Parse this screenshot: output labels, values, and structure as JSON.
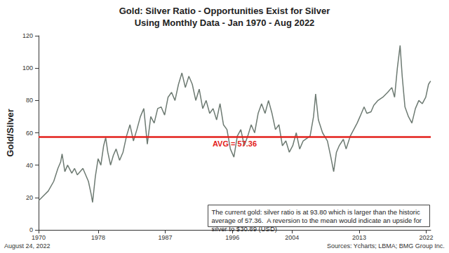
{
  "chart_data": {
    "type": "line",
    "title": "Gold: Silver Ratio - Opportunities Exist for Silver",
    "subtitle": "Using Monthly Data - Jan 1970 - Aug 2022",
    "y_label": "Gold/Silver",
    "color": "#6d7a72",
    "x": [
      1970.0,
      1970.65,
      1971.3,
      1972.04,
      1972.6,
      1972.97,
      1973.16,
      1973.53,
      1973.9,
      1974.46,
      1974.83,
      1975.2,
      1975.57,
      1975.95,
      1976.32,
      1976.69,
      1977.06,
      1977.25,
      1977.62,
      1977.99,
      1978.36,
      1978.73,
      1979.01,
      1979.29,
      1979.66,
      1980.03,
      1980.4,
      1980.87,
      1981.33,
      1981.8,
      1982.26,
      1982.73,
      1983.19,
      1983.66,
      1984.12,
      1984.59,
      1985.05,
      1985.51,
      1985.98,
      1986.44,
      1986.91,
      1987.37,
      1987.84,
      1988.3,
      1988.77,
      1989.23,
      1989.69,
      1990.16,
      1990.62,
      1991.09,
      1991.55,
      1992.02,
      1992.48,
      1992.95,
      1993.41,
      1993.88,
      1994.34,
      1994.8,
      1995.27,
      1995.73,
      1996.2,
      1996.66,
      1997.13,
      1997.59,
      1998.06,
      1998.52,
      1998.98,
      1999.45,
      1999.91,
      2000.38,
      2000.84,
      2001.31,
      2001.77,
      2002.24,
      2002.7,
      2003.17,
      2003.63,
      2004.09,
      2004.56,
      2005.02,
      2005.49,
      2006.42,
      2006.88,
      2007.16,
      2007.53,
      2008.09,
      2008.74,
      2009.2,
      2009.58,
      2009.95,
      2010.32,
      2010.88,
      2011.25,
      2011.81,
      2012.27,
      2012.73,
      2013.11,
      2013.66,
      2014.03,
      2014.59,
      2014.96,
      2015.52,
      2016.17,
      2016.82,
      2017.38,
      2017.75,
      2018.12,
      2018.49,
      2018.77,
      2019.14,
      2019.61,
      2020.07,
      2020.54,
      2021.0,
      2021.47,
      2021.93,
      2022.3,
      2022.58
    ],
    "values": [
      18,
      21,
      24,
      30,
      38,
      42,
      47,
      36,
      40,
      35,
      38,
      34,
      36,
      38,
      34,
      30,
      22,
      17,
      33,
      44,
      40,
      52,
      57,
      48,
      40,
      46,
      50,
      43,
      48,
      58,
      65,
      55,
      62,
      70,
      75,
      53,
      70,
      66,
      75,
      76,
      71,
      82,
      85,
      80,
      90,
      97,
      88,
      95,
      90,
      80,
      87,
      75,
      80,
      72,
      75,
      68,
      78,
      65,
      62,
      50,
      45,
      58,
      62,
      52,
      58,
      65,
      60,
      72,
      78,
      72,
      80,
      72,
      62,
      65,
      52,
      55,
      48,
      52,
      60,
      50,
      55,
      58,
      70,
      84,
      68,
      60,
      55,
      45,
      36,
      48,
      52,
      56,
      50,
      58,
      62,
      66,
      70,
      76,
      72,
      73,
      77,
      80,
      82,
      85,
      88,
      82,
      100,
      114,
      95,
      76,
      70,
      66,
      75,
      80,
      78,
      82,
      90,
      92
    ],
    "xlim": [
      1970,
      2022.6
    ],
    "xticks": [
      1970,
      1978,
      1987,
      1996,
      2004,
      2013,
      2022
    ],
    "ylim": [
      0,
      120
    ],
    "yticks": [
      0,
      20,
      40,
      60,
      80,
      100,
      120
    ],
    "grid": false,
    "reference_line": {
      "value": 57.36,
      "label": "AVG = 57.36",
      "color": "#e3211c"
    },
    "annotation": "The current gold: silver ratio is at 93.80 which is larger than the historic average of 57.36.  A reversion to the mean would indicate an upside for silver to $30.89 (USD)",
    "footer_left": "August 24, 2022",
    "footer_right": "Sources: Ycharts; LBMA; BMG Group Inc."
  }
}
